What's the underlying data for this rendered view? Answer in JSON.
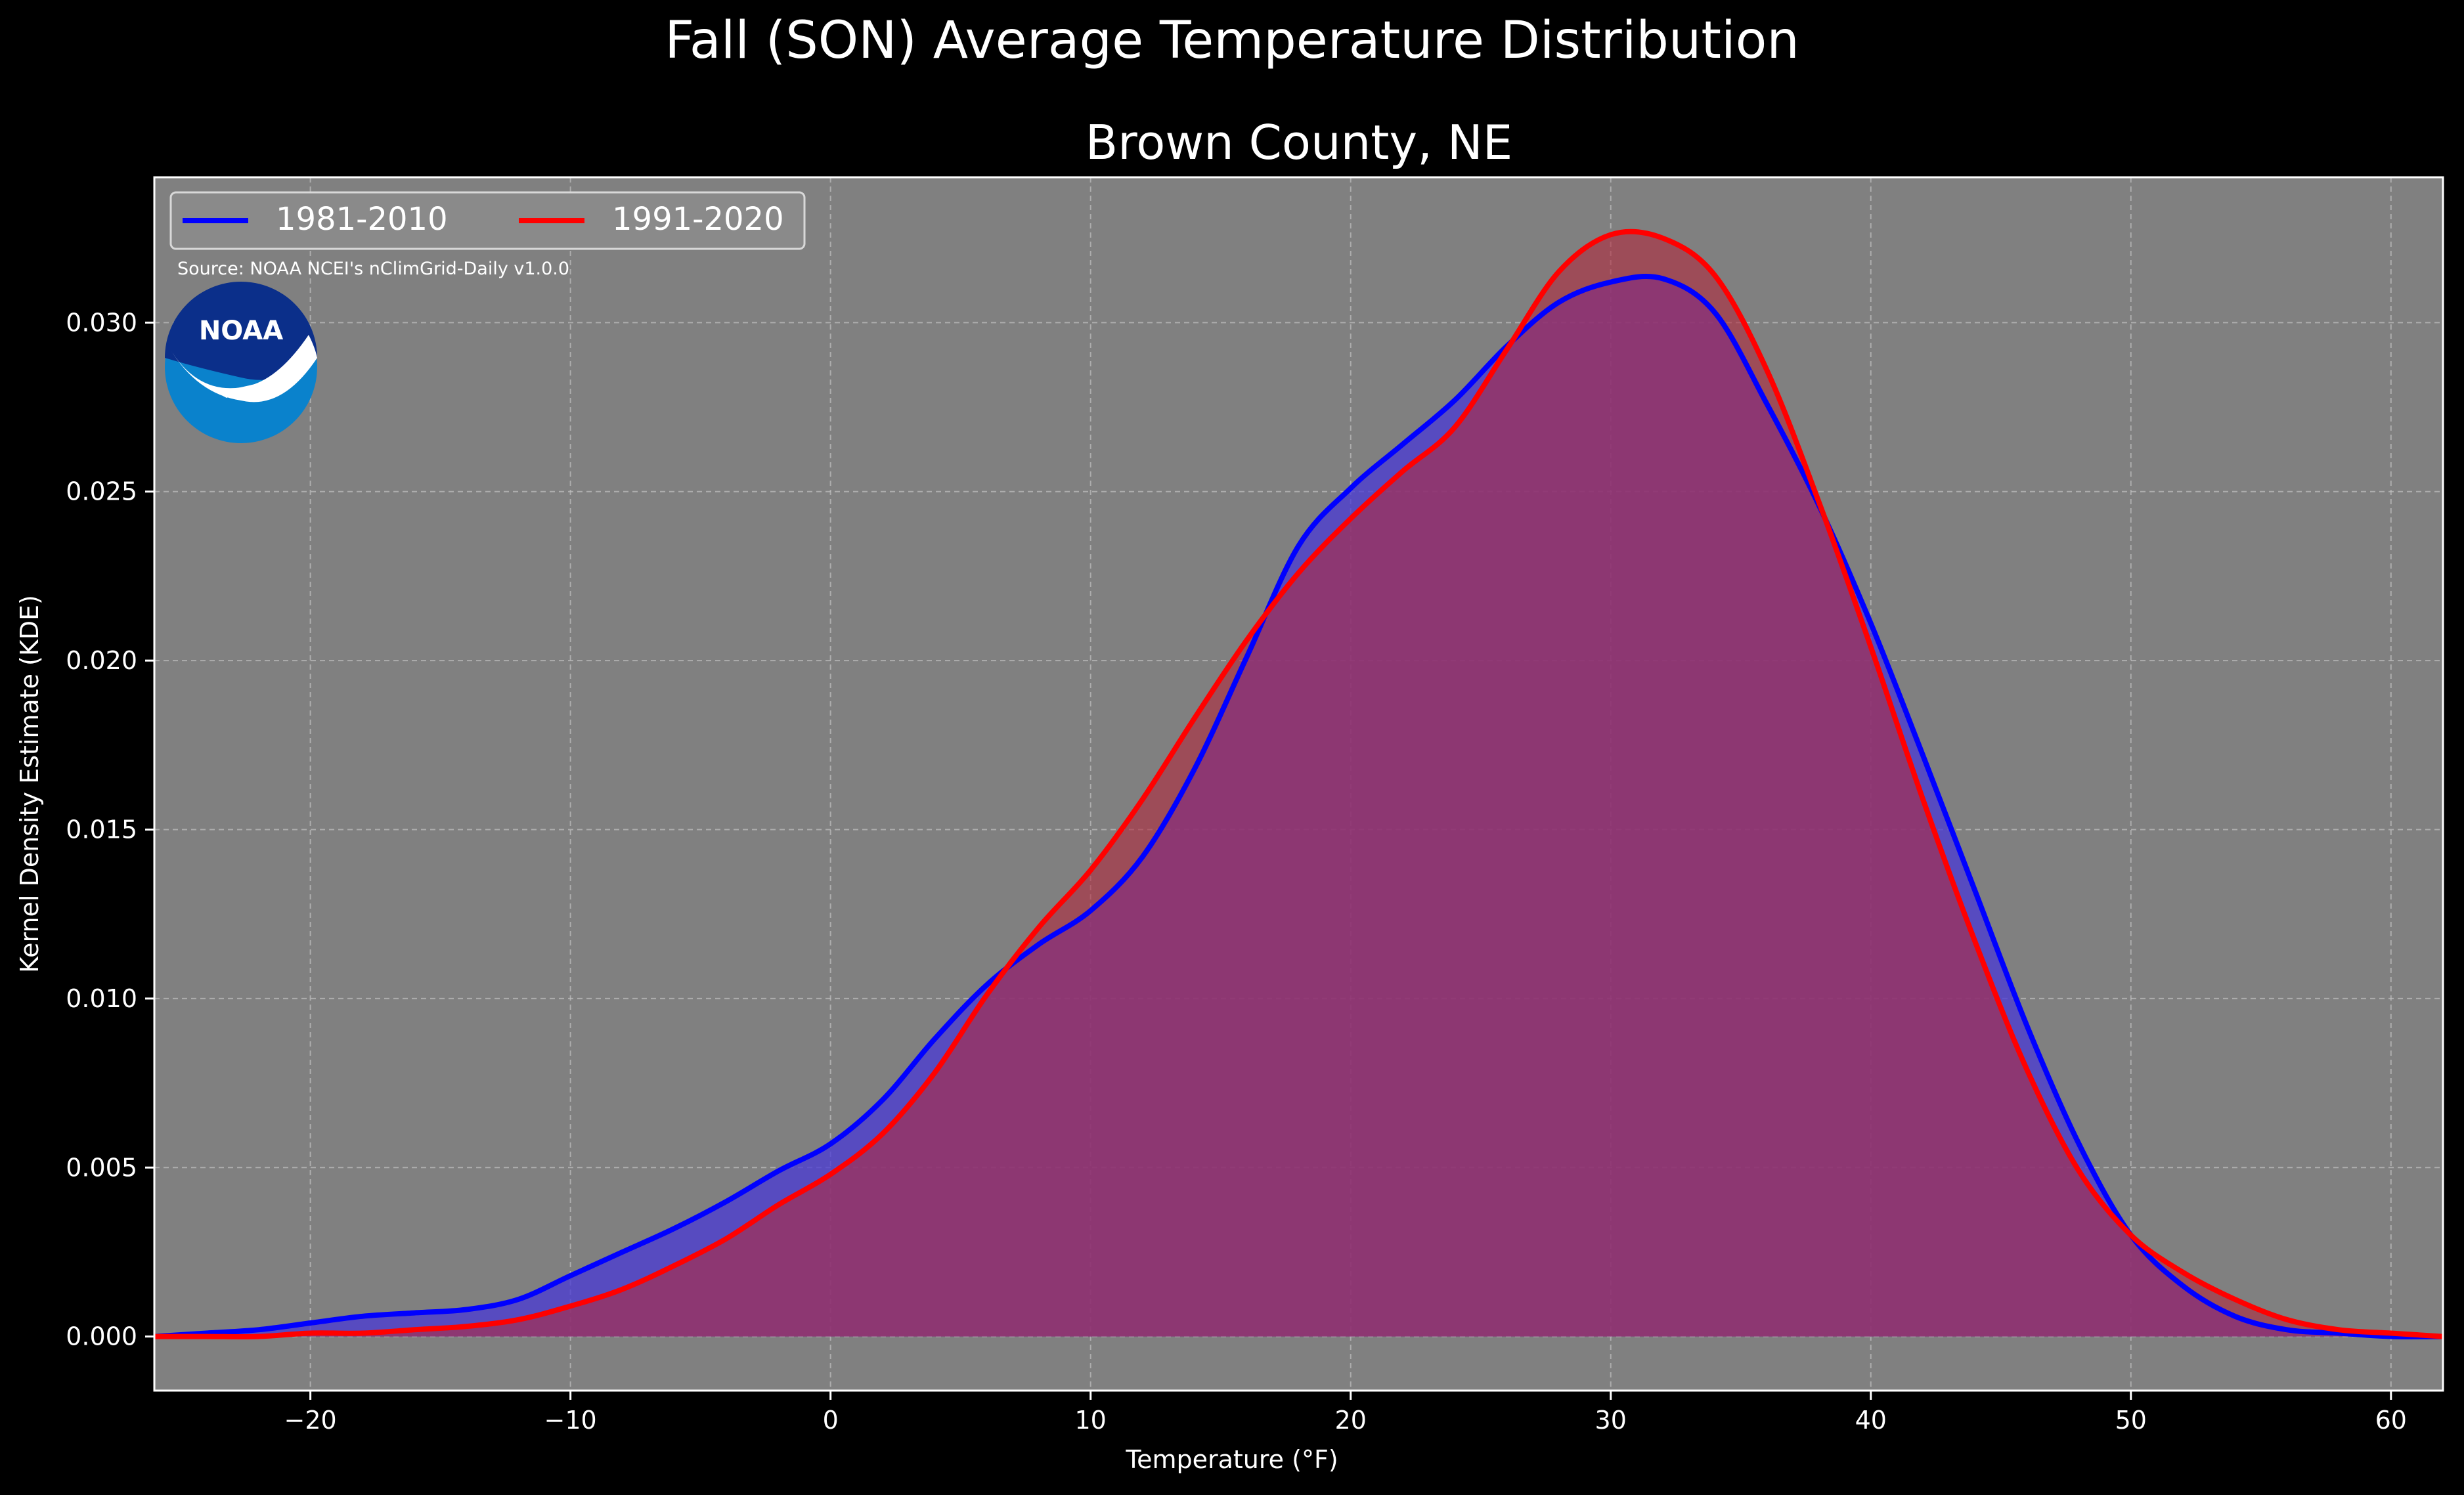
{
  "chart_data": {
    "type": "area",
    "title": "Fall (SON) Average Temperature Distribution",
    "subtitle": "Brown County, NE",
    "xlabel": "Temperature (°F)",
    "ylabel": "Kernel Density Estimate (KDE)",
    "xlim": [
      -26,
      62
    ],
    "ylim": [
      -0.0016,
      0.0343
    ],
    "xticks": [
      -20,
      -10,
      0,
      10,
      20,
      30,
      40,
      50,
      60
    ],
    "xtick_labels": [
      "−20",
      "−10",
      "0",
      "10",
      "20",
      "30",
      "40",
      "50",
      "60"
    ],
    "yticks": [
      0.0,
      0.005,
      0.01,
      0.015,
      0.02,
      0.025,
      0.03
    ],
    "ytick_labels": [
      "0.000",
      "0.005",
      "0.010",
      "0.015",
      "0.020",
      "0.025",
      "0.030"
    ],
    "grid": true,
    "legend_position": "top-left",
    "source_note": "Source: NOAA NCEI's nClimGrid-Daily v1.0.0",
    "logo": "NOAA",
    "colors": {
      "background": "#000000",
      "plot_background": "#808080",
      "text": "#ffffff",
      "grid": "#c0c0c0"
    },
    "series": [
      {
        "name": "1981-2010",
        "color": "#0000ff",
        "fill": "#4a3ad6",
        "x": [
          -26,
          -24,
          -22,
          -20,
          -18,
          -16,
          -14,
          -12,
          -10,
          -8,
          -6,
          -4,
          -2,
          0,
          2,
          4,
          6,
          8,
          10,
          12,
          14,
          16,
          18,
          20,
          22,
          24,
          26,
          28,
          30,
          32,
          34,
          36,
          38,
          40,
          42,
          44,
          46,
          48,
          50,
          52,
          54,
          56,
          58,
          60,
          62
        ],
        "y": [
          0.0,
          0.0001,
          0.0002,
          0.0004,
          0.0006,
          0.0007,
          0.0008,
          0.0011,
          0.0018,
          0.0025,
          0.0032,
          0.004,
          0.0049,
          0.0057,
          0.007,
          0.0088,
          0.0104,
          0.0116,
          0.0126,
          0.0142,
          0.0168,
          0.0201,
          0.0234,
          0.0251,
          0.0264,
          0.0277,
          0.0293,
          0.0306,
          0.0312,
          0.0313,
          0.0303,
          0.0276,
          0.0246,
          0.0211,
          0.0172,
          0.0132,
          0.0092,
          0.0057,
          0.003,
          0.0015,
          0.0006,
          0.0002,
          0.0001,
          0.0,
          0.0
        ]
      },
      {
        "name": "1991-2020",
        "color": "#ff0000",
        "fill": "#b02a3e",
        "x": [
          -26,
          -24,
          -22,
          -20,
          -18,
          -16,
          -14,
          -12,
          -10,
          -8,
          -6,
          -4,
          -2,
          0,
          2,
          4,
          6,
          8,
          10,
          12,
          14,
          16,
          18,
          20,
          22,
          24,
          26,
          28,
          30,
          32,
          34,
          36,
          38,
          40,
          42,
          44,
          46,
          48,
          50,
          52,
          54,
          56,
          58,
          60,
          62
        ],
        "y": [
          0.0,
          0.0,
          0.0,
          0.0001,
          0.0001,
          0.0002,
          0.0003,
          0.0005,
          0.0009,
          0.0014,
          0.0021,
          0.0029,
          0.0039,
          0.0048,
          0.006,
          0.0078,
          0.0101,
          0.0121,
          0.0138,
          0.0159,
          0.0183,
          0.0206,
          0.0226,
          0.0242,
          0.0256,
          0.0269,
          0.0292,
          0.0315,
          0.0326,
          0.0325,
          0.0314,
          0.0286,
          0.0247,
          0.0204,
          0.0159,
          0.0117,
          0.0079,
          0.0049,
          0.003,
          0.0019,
          0.0011,
          0.0005,
          0.0002,
          0.0001,
          0.0
        ]
      }
    ]
  }
}
